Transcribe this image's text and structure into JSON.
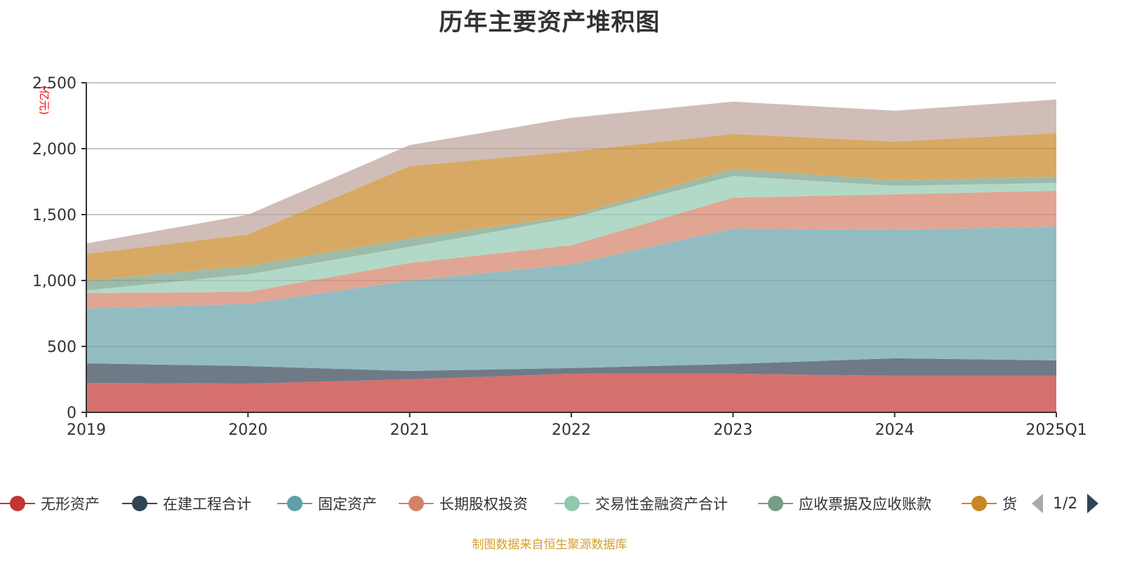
{
  "chart_data": {
    "type": "area",
    "stacked": true,
    "title": "历年主要资产堆积图",
    "ylabel": "(亿元)",
    "xlabel": "",
    "categories": [
      "2019",
      "2020",
      "2021",
      "2022",
      "2023",
      "2024",
      "2025Q1"
    ],
    "ylim": [
      0,
      2500
    ],
    "yticks": [
      0,
      500,
      1000,
      1500,
      2000,
      2500
    ],
    "ytick_labels": [
      "0",
      "500",
      "1,000",
      "1,500",
      "2,000",
      "2,500"
    ],
    "grid": true,
    "legend_position": "bottom",
    "series": [
      {
        "name": "无形资产",
        "color": "#c23531",
        "fill": "#d4716e",
        "values": [
          223,
          218,
          250,
          293,
          293,
          277,
          277
        ]
      },
      {
        "name": "在建工程合计",
        "color": "#2f4554",
        "fill": "#6e7b87",
        "values": [
          149,
          133,
          64,
          43,
          74,
          133,
          117
        ]
      },
      {
        "name": "固定资产",
        "color": "#61a0a8",
        "fill": "#93bcc2",
        "values": [
          415,
          473,
          686,
          787,
          1027,
          973,
          1016
        ]
      },
      {
        "name": "长期股权投资",
        "color": "#d48265",
        "fill": "#e0a693",
        "values": [
          117,
          90,
          133,
          144,
          234,
          271,
          271
        ]
      },
      {
        "name": "交易性金融资产合计",
        "color": "#91c7ae",
        "fill": "#b2d9c7",
        "values": [
          21,
          133,
          122,
          207,
          165,
          64,
          59
        ]
      },
      {
        "name": "应收票据及应收账款",
        "color": "#749f83",
        "fill": "#9dbba8",
        "values": [
          74,
          64,
          64,
          16,
          53,
          43,
          48
        ]
      },
      {
        "name": "货",
        "color": "#ca8622",
        "fill": "#d8a964",
        "values": [
          202,
          239,
          548,
          489,
          266,
          293,
          330
        ]
      },
      {
        "name": "",
        "color": "#bda29a",
        "fill": "#d0bdb7",
        "values": [
          80,
          149,
          160,
          255,
          245,
          234,
          255
        ]
      }
    ]
  },
  "legend": {
    "items": [
      {
        "label": "无形资产",
        "color": "#c23531"
      },
      {
        "label": "在建工程合计",
        "color": "#2f4554"
      },
      {
        "label": "固定资产",
        "color": "#61a0a8"
      },
      {
        "label": "长期股权投资",
        "color": "#d48265"
      },
      {
        "label": "交易性金融资产合计",
        "color": "#91c7ae"
      },
      {
        "label": "应收票据及应收账款",
        "color": "#749f83"
      },
      {
        "label": "货",
        "color": "#ca8622"
      }
    ],
    "page_text": "1/2"
  },
  "source_note": "制图数据来自恒生聚源数据库"
}
